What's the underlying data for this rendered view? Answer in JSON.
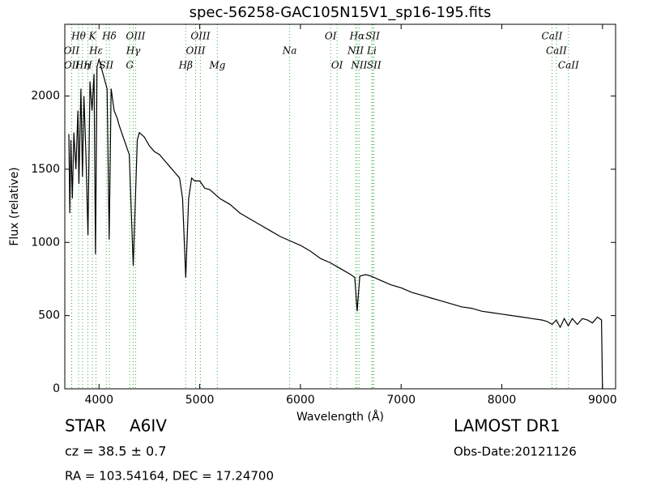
{
  "chart_data": {
    "type": "line",
    "title": "spec-56258-GAC105N15V1_sp16-195.fits",
    "xlabel": "Wavelength (Å)",
    "ylabel": "Flux (relative)",
    "xlim": [
      3660,
      9130
    ],
    "ylim": [
      0,
      2490
    ],
    "xticks": [
      4000,
      5000,
      6000,
      7000,
      8000,
      9000
    ],
    "yticks": [
      0,
      500,
      1000,
      1500,
      2000
    ],
    "x": [
      3700,
      3710,
      3720,
      3735,
      3750,
      3770,
      3790,
      3800,
      3820,
      3835,
      3850,
      3870,
      3890,
      3910,
      3930,
      3950,
      3965,
      3980,
      4000,
      4020,
      4040,
      4060,
      4080,
      4101,
      4120,
      4150,
      4180,
      4200,
      4250,
      4300,
      4340,
      4380,
      4400,
      4450,
      4500,
      4550,
      4600,
      4650,
      4700,
      4750,
      4800,
      4830,
      4861,
      4890,
      4920,
      4950,
      5000,
      5050,
      5100,
      5150,
      5200,
      5300,
      5400,
      5500,
      5600,
      5700,
      5800,
      5900,
      6000,
      6100,
      6200,
      6300,
      6400,
      6500,
      6540,
      6563,
      6590,
      6650,
      6700,
      6800,
      6900,
      7000,
      7100,
      7200,
      7300,
      7400,
      7500,
      7600,
      7700,
      7800,
      7900,
      8000,
      8100,
      8200,
      8300,
      8400,
      8450,
      8500,
      8540,
      8580,
      8620,
      8660,
      8700,
      8750,
      8800,
      8850,
      8900,
      8950,
      8990,
      9000
    ],
    "series": [
      {
        "name": "Flux",
        "color": "#000000",
        "values": [
          1740,
          1200,
          1700,
          1300,
          1750,
          1500,
          1900,
          1400,
          2050,
          1450,
          2000,
          1600,
          1050,
          2100,
          1900,
          2150,
          920,
          2200,
          2250,
          2200,
          2150,
          2100,
          2050,
          1020,
          2050,
          1900,
          1850,
          1800,
          1700,
          1600,
          840,
          1700,
          1750,
          1720,
          1660,
          1620,
          1600,
          1560,
          1520,
          1480,
          1440,
          1300,
          760,
          1300,
          1440,
          1420,
          1420,
          1370,
          1360,
          1330,
          1300,
          1260,
          1200,
          1160,
          1120,
          1080,
          1040,
          1010,
          980,
          940,
          890,
          860,
          820,
          780,
          760,
          530,
          770,
          780,
          770,
          740,
          710,
          690,
          660,
          640,
          620,
          600,
          580,
          560,
          550,
          530,
          520,
          510,
          500,
          490,
          480,
          470,
          460,
          440,
          470,
          420,
          480,
          430,
          480,
          440,
          480,
          470,
          450,
          490,
          470,
          0
        ]
      }
    ],
    "lines_color": "#3cb043",
    "lines": [
      {
        "label": "Hθ",
        "wavelength": 3797
      },
      {
        "label": "K",
        "wavelength": 3934
      },
      {
        "label": "Hδ",
        "wavelength": 4102
      },
      {
        "label": "OIII",
        "wavelength": 4363
      },
      {
        "label": "OIII",
        "wavelength": 5007
      },
      {
        "label": "OI",
        "wavelength": 6300
      },
      {
        "label": "Hα",
        "wavelength": 6563
      },
      {
        "label": "SII",
        "wavelength": 6717
      },
      {
        "label": "CaII",
        "wavelength": 8498
      },
      {
        "label": "OII",
        "wavelength": 3727
      },
      {
        "label": "Hε",
        "wavelength": 3970
      },
      {
        "label": "SII",
        "wavelength": 4072
      },
      {
        "label": "Hγ",
        "wavelength": 4340
      },
      {
        "label": "OIII",
        "wavelength": 4959
      },
      {
        "label": "Na",
        "wavelength": 5893
      },
      {
        "label": "NII",
        "wavelength": 6548
      },
      {
        "label": "Li",
        "wavelength": 6708
      },
      {
        "label": "CaII",
        "wavelength": 8542
      },
      {
        "label": "OII",
        "wavelength": 3729
      },
      {
        "label": "Hη",
        "wavelength": 3835
      },
      {
        "label": "H",
        "wavelength": 3889
      },
      {
        "label": "G",
        "wavelength": 4305
      },
      {
        "label": "Hβ",
        "wavelength": 4861
      },
      {
        "label": "Mg",
        "wavelength": 5175
      },
      {
        "label": "OI",
        "wavelength": 6364
      },
      {
        "label": "NII",
        "wavelength": 6583
      },
      {
        "label": "SII",
        "wavelength": 6731
      },
      {
        "label": "CaII",
        "wavelength": 8662
      }
    ]
  },
  "footer": {
    "class": "STAR",
    "subclass": "A6IV",
    "cz": "cz = 38.5 ± 0.7",
    "coords": "RA = 103.54164, DEC = 17.24700",
    "survey": "LAMOST DR1",
    "date": "Obs-Date:20121126"
  }
}
